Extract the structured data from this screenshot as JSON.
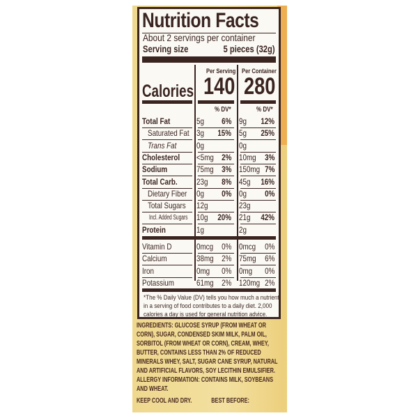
{
  "label": {
    "title": "Nutrition Facts",
    "servings": "About 2 servings per container",
    "serving_size_label": "Serving size",
    "serving_size_value": "5 pieces (32g)",
    "per_serving": "Per Serving",
    "per_container": "Per Container",
    "calories_label": "Calories",
    "calories_serving": "140",
    "calories_container": "280",
    "dv_header": "% DV*",
    "rows": [
      {
        "name": "Total Fat",
        "bold": true,
        "indent": 0,
        "a1": "5g",
        "p1": "6%",
        "a2": "9g",
        "p2": "12%"
      },
      {
        "name": "Saturated Fat",
        "bold": false,
        "indent": 1,
        "a1": "3g",
        "p1": "15%",
        "a2": "5g",
        "p2": "25%"
      },
      {
        "name": "Trans Fat",
        "bold": false,
        "indent": 1,
        "a1": "0g",
        "p1": "",
        "a2": "0g",
        "p2": ""
      },
      {
        "name": "Cholesterol",
        "bold": true,
        "indent": 0,
        "a1": "<5mg",
        "p1": "2%",
        "a2": "10mg",
        "p2": "3%"
      },
      {
        "name": "Sodium",
        "bold": true,
        "indent": 0,
        "a1": "75mg",
        "p1": "3%",
        "a2": "150mg",
        "p2": "7%"
      },
      {
        "name": "Total Carb.",
        "bold": true,
        "indent": 0,
        "a1": "23g",
        "p1": "8%",
        "a2": "45g",
        "p2": "16%"
      },
      {
        "name": "Dietary Fiber",
        "bold": false,
        "indent": 1,
        "a1": "0g",
        "p1": "0%",
        "a2": "0g",
        "p2": "0%"
      },
      {
        "name": "Total Sugars",
        "bold": false,
        "indent": 1,
        "a1": "12g",
        "p1": "",
        "a2": "23g",
        "p2": ""
      },
      {
        "name": "Incl. Added Sugars",
        "bold": false,
        "indent": 2,
        "a1": "10g",
        "p1": "20%",
        "a2": "21g",
        "p2": "42%"
      },
      {
        "name": "Protein",
        "bold": true,
        "indent": 0,
        "a1": "1g",
        "p1": "",
        "a2": "2g",
        "p2": ""
      }
    ],
    "vitamins": [
      {
        "name": "Vitamin D",
        "a1": "0mcg",
        "p1": "0%",
        "a2": "0mcg",
        "p2": "0%"
      },
      {
        "name": "Calcium",
        "a1": "38mg",
        "p1": "2%",
        "a2": "75mg",
        "p2": "6%"
      },
      {
        "name": "Iron",
        "a1": "0mg",
        "p1": "0%",
        "a2": "0mg",
        "p2": "0%"
      },
      {
        "name": "Potassium",
        "a1": "61mg",
        "p1": "2%",
        "a2": "120mg",
        "p2": "2%"
      }
    ],
    "footnote": "*The % Daily Value (DV) tells you how much a nutrient in a serving of food contributes to a daily diet. 2,000 calories a day is used for general nutrition advice."
  },
  "ingredients": "INGREDIENTS: GLUCOSE SYRUP (FROM WHEAT OR CORN), SUGAR, CONDENSED SKIM MILK, PALM OIL, SORBITOL (FROM WHEAT OR CORN), CREAM, WHEY, BUTTER, CONTAINS LESS THAN 2% OF REDUCED MINERALS WHEY, SALT, SUGAR CANE SYRUP, NATURAL AND ARTIFICIAL FLAVORS, SOY LECITHIN EMULSIFIER.",
  "allergy": "ALLERGY INFORMATION: CONTAINS MILK, SOYBEANS AND WHEAT.",
  "storage": "KEEP COOL AND DRY.",
  "best_before": "BEST BEFORE:",
  "colors": {
    "ink": "#3a2420",
    "package": "#efd88e",
    "label_bg": "#fbf9f4"
  }
}
